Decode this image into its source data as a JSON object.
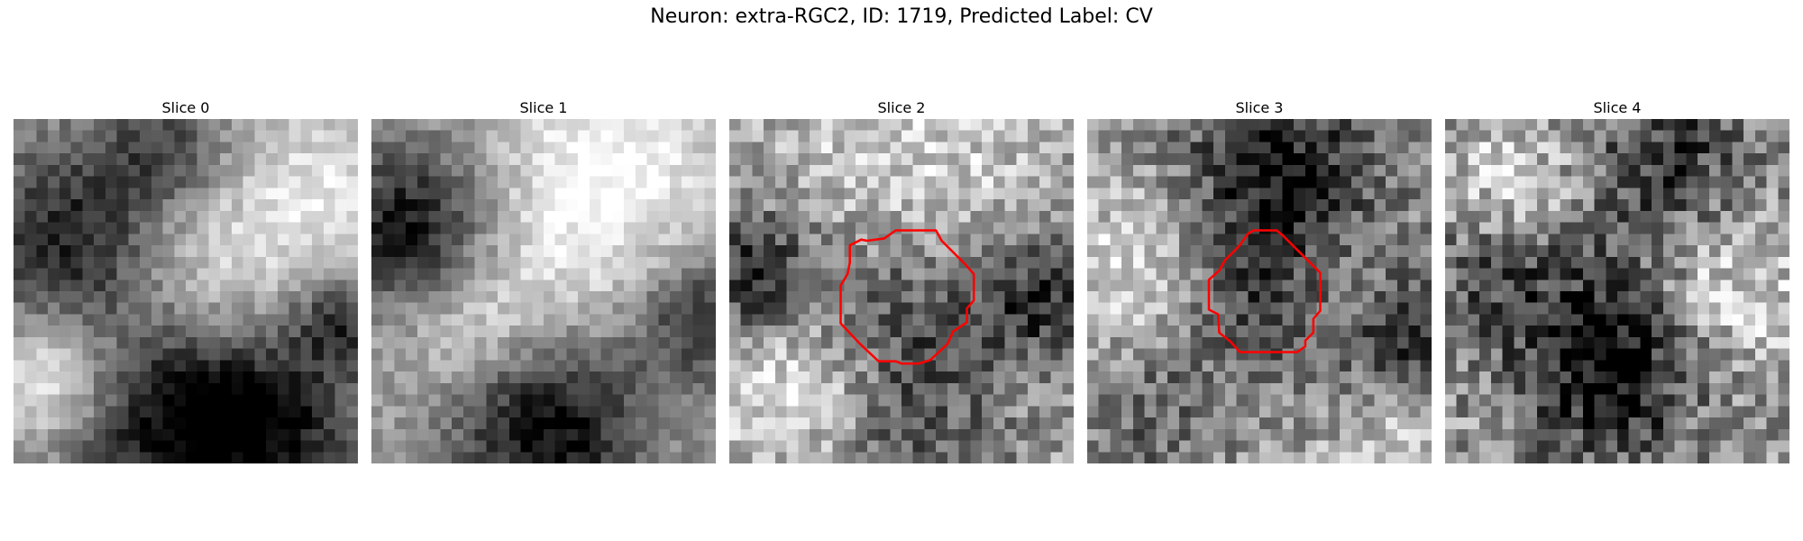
{
  "figure": {
    "title": "Neuron: extra-RGC2, ID: 1719, Predicted Label: CV"
  },
  "panels": [
    {
      "title": "Slice 0",
      "has_contour": false
    },
    {
      "title": "Slice 1",
      "has_contour": false
    },
    {
      "title": "Slice 2",
      "has_contour": true
    },
    {
      "title": "Slice 3",
      "has_contour": true
    },
    {
      "title": "Slice 4",
      "has_contour": false
    }
  ],
  "colors": {
    "contour": "#ff0000",
    "colormap": "gray"
  }
}
